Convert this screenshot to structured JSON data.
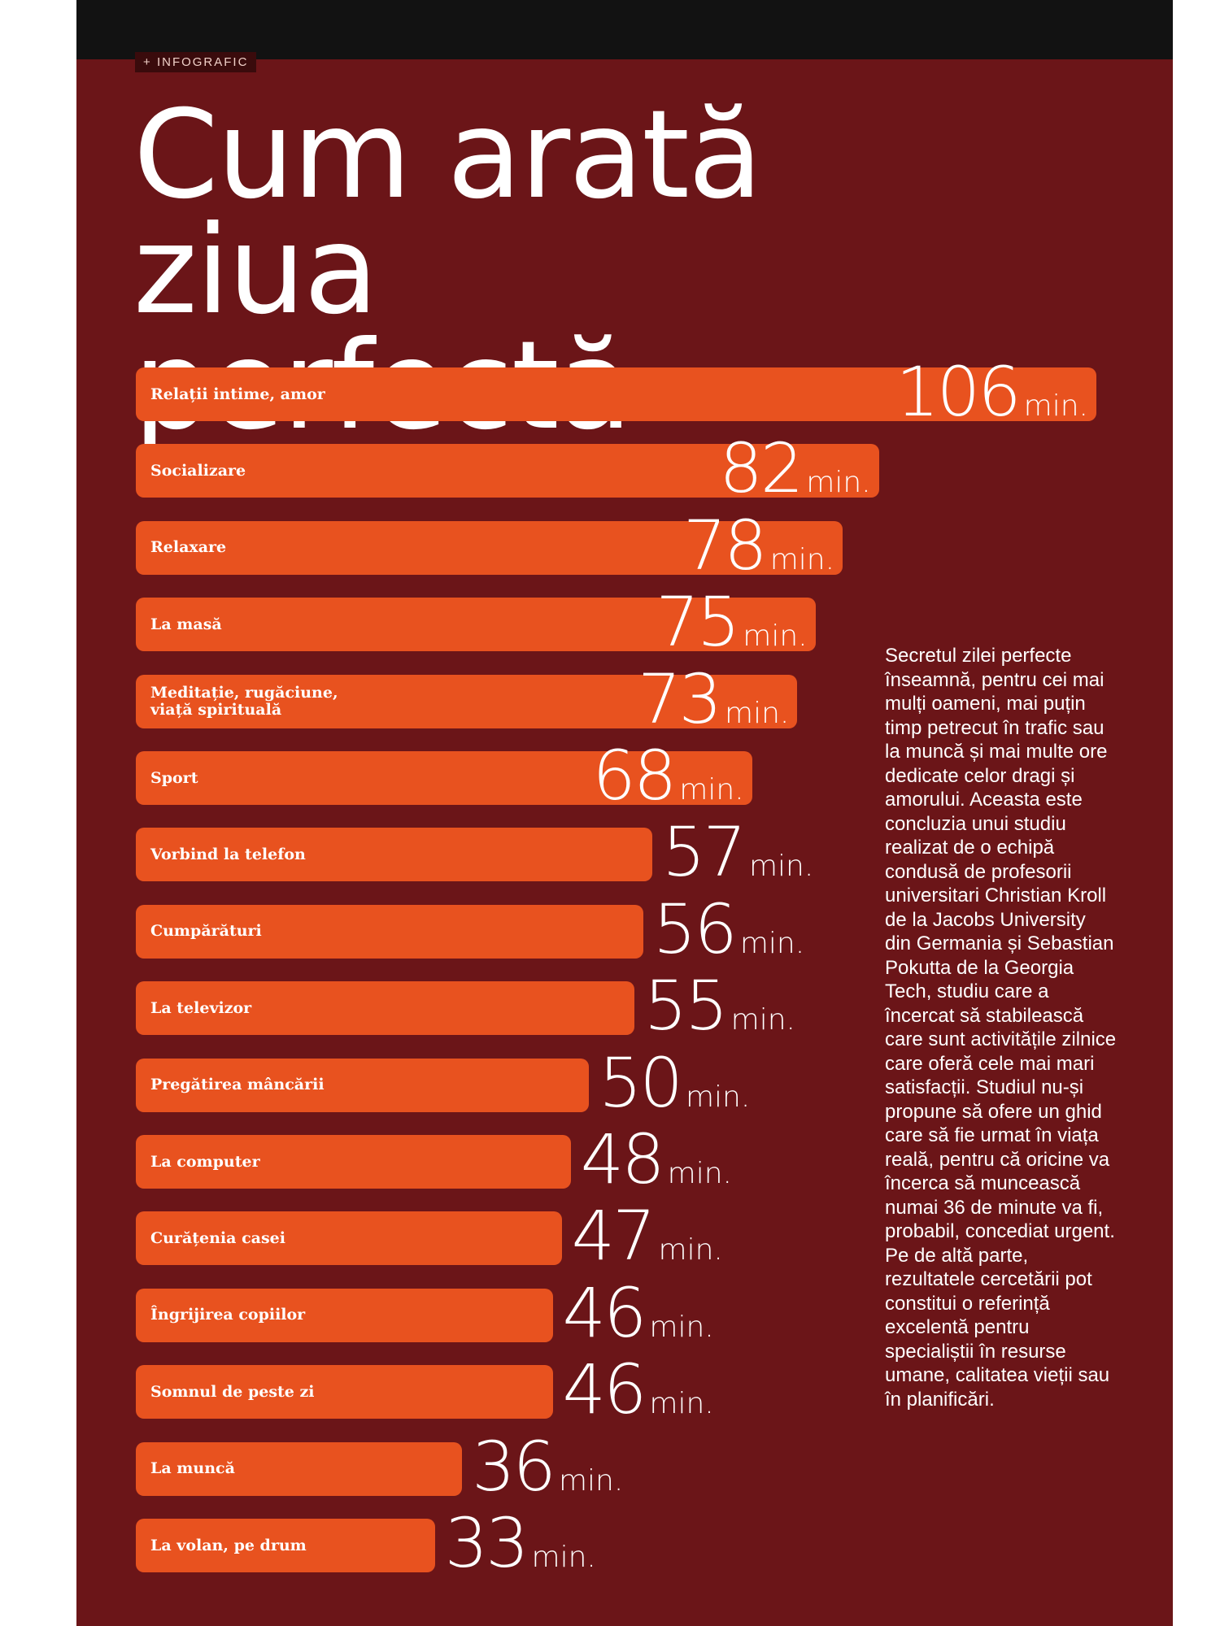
{
  "chart_data": {
    "type": "bar",
    "orientation": "horizontal",
    "section_label": "INFOGRAFIC",
    "title": "Cum arată ziua perfectă",
    "unit": "min.",
    "color": "#e8521f",
    "categories": [
      "Relații intime, amor",
      "Socializare",
      "Relaxare",
      "La masă",
      "Meditație, rugăciune, viață spirituală",
      "Sport",
      "Vorbind la telefon",
      "Cumpărături",
      "La televizor",
      "Pregătirea mâncării",
      "La computer",
      "Curățenia casei",
      "Îngrijirea copiilor",
      "Somnul de peste zi",
      "La muncă",
      "La volan, pe drum"
    ],
    "values": [
      106,
      82,
      78,
      75,
      73,
      68,
      57,
      56,
      55,
      50,
      48,
      47,
      46,
      46,
      36,
      33
    ],
    "annotation": "Secretul zilei perfecte înseamnă, pentru cei mai mulți oameni, mai puțin timp petrecut în trafic sau la muncă și mai multe ore dedicate celor dragi și amorului. Aceasta este concluzia unui studiu realizat de o echipă condusă de profesorii universitari Christian Kroll de la Jacobs University din Germania și Sebastian Pokutta de la Georgia Tech, studiu care a încercat să stabilească care sunt activitățile zilnice care oferă cele mai mari satisfacții. Studiul nu-și propune să ofere un ghid care să fie urmat în viața reală, pentru că oricine va încerca să muncească numai 36 de minute va fi, probabil, concediat urgent. Pe de altă parte, rezultatele cercetării pot constitui o referință excelentă pentru specialiștii în resurse umane, calitatea vieții sau în planificări."
  }
}
